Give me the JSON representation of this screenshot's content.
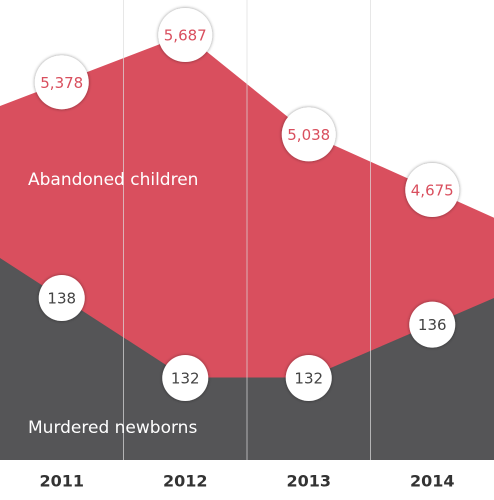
{
  "chart_data": {
    "type": "area",
    "categories": [
      "2011",
      "2012",
      "2013",
      "2014"
    ],
    "series": [
      {
        "name": "Abandoned children",
        "color": "#d94f5e",
        "values": [
          5378,
          5687,
          5038,
          4675
        ],
        "value_labels": [
          "5,378",
          "5,687",
          "5,038",
          "4,675"
        ]
      },
      {
        "name": "Murdered newborns",
        "color": "#555557",
        "values": [
          138,
          132,
          132,
          136
        ]
      }
    ]
  }
}
